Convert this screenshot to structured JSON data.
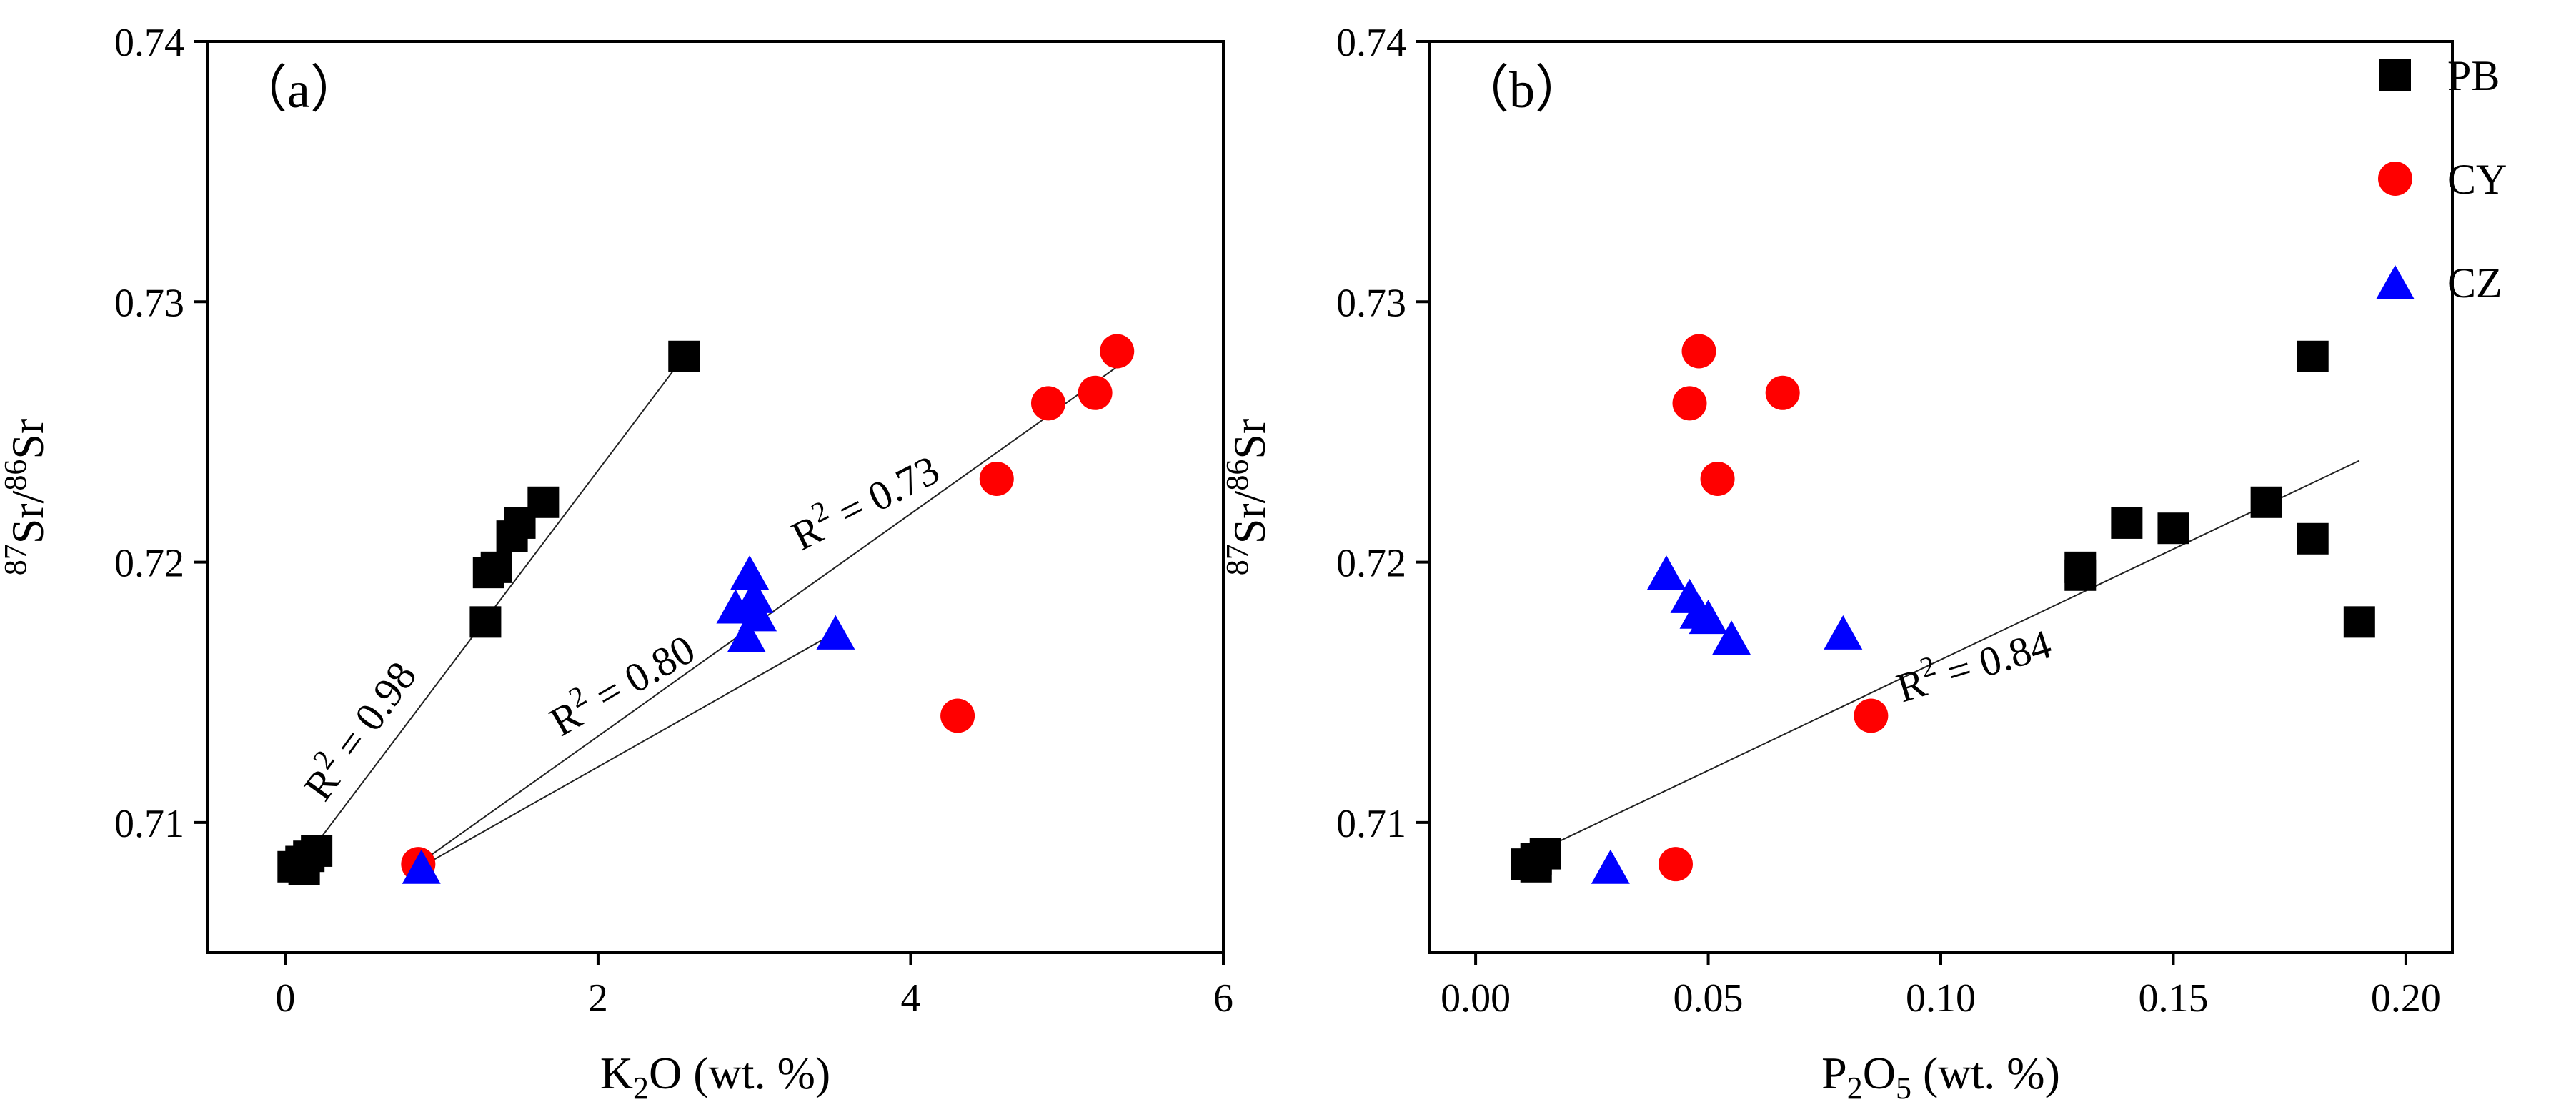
{
  "chart_data": [
    {
      "type": "scatter",
      "panel_label": "（a）",
      "xlabel": {
        "base": "K",
        "sub": "2",
        "rest": "O (wt. %)"
      },
      "ylabel": {
        "sup1": "87",
        "mid": "Sr/",
        "sup2": "86",
        "end": "Sr"
      },
      "xlim": [
        -0.5,
        6
      ],
      "ylim": [
        0.705,
        0.74
      ],
      "xticks": [
        0,
        2,
        4,
        6
      ],
      "xtick_labels": [
        "0",
        "2",
        "4",
        "6"
      ],
      "yticks": [
        0.71,
        0.72,
        0.73,
        0.74
      ],
      "ytick_labels": [
        "0.71",
        "0.72",
        "0.73",
        "0.74"
      ],
      "series": [
        {
          "name": "PB",
          "marker": "square",
          "color": "#000000",
          "points": [
            [
              0.05,
              0.7083
            ],
            [
              0.1,
              0.7085
            ],
            [
              0.15,
              0.7087
            ],
            [
              0.2,
              0.7089
            ],
            [
              0.12,
              0.7082
            ],
            [
              1.28,
              0.7177
            ],
            [
              1.3,
              0.7196
            ],
            [
              1.35,
              0.7198
            ],
            [
              1.45,
              0.721
            ],
            [
              1.5,
              0.7215
            ],
            [
              1.65,
              0.7223
            ],
            [
              2.55,
              0.7279
            ]
          ]
        },
        {
          "name": "CY",
          "marker": "circle",
          "color": "#ff0000",
          "points": [
            [
              0.85,
              0.7084
            ],
            [
              4.3,
              0.7141
            ],
            [
              4.55,
              0.7232
            ],
            [
              4.88,
              0.7261
            ],
            [
              5.18,
              0.7265
            ],
            [
              5.32,
              0.7281
            ]
          ]
        },
        {
          "name": "CZ",
          "marker": "triangle",
          "color": "#0000ff",
          "points": [
            [
              0.87,
              0.7083
            ],
            [
              2.88,
              0.7183
            ],
            [
              2.95,
              0.7172
            ],
            [
              2.97,
              0.7196
            ],
            [
              3.0,
              0.7187
            ],
            [
              3.02,
              0.718
            ],
            [
              3.52,
              0.7173
            ]
          ]
        }
      ],
      "fits": [
        {
          "series": "PB",
          "x": [
            0.15,
            2.55
          ],
          "y": [
            0.7088,
            0.7279
          ],
          "label": "R² = 0.98",
          "label_prefix": "R",
          "label_sup": "2",
          "label_value": " = 0.98",
          "label_x": 0.55,
          "label_y": 0.7132,
          "label_angle": -54
        },
        {
          "series": "CZ",
          "x": [
            0.87,
            3.52
          ],
          "y": [
            0.7083,
            0.7173
          ],
          "label": "R² = 0.80",
          "label_prefix": "R",
          "label_sup": "2",
          "label_value": " = 0.80",
          "label_x": 2.2,
          "label_y": 0.7148,
          "label_angle": -30
        },
        {
          "series": "CY",
          "x": [
            0.85,
            5.32
          ],
          "y": [
            0.7084,
            0.7275
          ],
          "label": "R² = 0.73",
          "label_prefix": "R",
          "label_sup": "2",
          "label_value": " = 0.73",
          "label_x": 3.75,
          "label_y": 0.7218,
          "label_angle": -27
        }
      ]
    },
    {
      "type": "scatter",
      "panel_label": "（b）",
      "xlabel": {
        "base": "P",
        "sub": "2",
        "mid": "O",
        "sub2": "5",
        "rest": " (wt. %)"
      },
      "ylabel": {
        "sup1": "87",
        "mid": "Sr/",
        "sup2": "86",
        "end": "Sr"
      },
      "xlim": [
        -0.01,
        0.21
      ],
      "ylim": [
        0.705,
        0.74
      ],
      "xticks": [
        0,
        0.05,
        0.1,
        0.15,
        0.2
      ],
      "xtick_labels": [
        "0.00",
        "0.05",
        "0.10",
        "0.15",
        "0.20"
      ],
      "yticks": [
        0.71,
        0.72,
        0.73,
        0.74
      ],
      "ytick_labels": [
        "0.71",
        "0.72",
        "0.73",
        "0.74"
      ],
      "series": [
        {
          "name": "PB",
          "marker": "square",
          "color": "#000000",
          "points": [
            [
              0.011,
              0.7084
            ],
            [
              0.013,
              0.7083
            ],
            [
              0.015,
              0.7088
            ],
            [
              0.013,
              0.7086
            ],
            [
              0.13,
              0.7198
            ],
            [
              0.13,
              0.7195
            ],
            [
              0.14,
              0.7215
            ],
            [
              0.15,
              0.7213
            ],
            [
              0.17,
              0.7223
            ],
            [
              0.18,
              0.7279
            ],
            [
              0.18,
              0.7209
            ],
            [
              0.19,
              0.7177
            ]
          ]
        },
        {
          "name": "CY",
          "marker": "circle",
          "color": "#ff0000",
          "points": [
            [
              0.043,
              0.7084
            ],
            [
              0.046,
              0.7261
            ],
            [
              0.048,
              0.7281
            ],
            [
              0.052,
              0.7232
            ],
            [
              0.066,
              0.7265
            ],
            [
              0.085,
              0.7141
            ]
          ]
        },
        {
          "name": "CZ",
          "marker": "triangle",
          "color": "#0000ff",
          "points": [
            [
              0.029,
              0.7083
            ],
            [
              0.041,
              0.7196
            ],
            [
              0.046,
              0.7187
            ],
            [
              0.048,
              0.7181
            ],
            [
              0.05,
              0.7179
            ],
            [
              0.055,
              0.7171
            ],
            [
              0.079,
              0.7173
            ]
          ]
        }
      ],
      "fits": [
        {
          "series": "PB",
          "x": [
            0.01,
            0.19
          ],
          "y": [
            0.7086,
            0.7239
          ],
          "label": "R² = 0.84",
          "label_prefix": "R",
          "label_sup": "2",
          "label_value": " = 0.84",
          "label_x": 0.108,
          "label_y": 0.7155,
          "label_angle": -17
        }
      ]
    }
  ],
  "legend": [
    {
      "name": "PB",
      "marker": "square",
      "color": "#000000"
    },
    {
      "name": "CY",
      "marker": "circle",
      "color": "#ff0000"
    },
    {
      "name": "CZ",
      "marker": "triangle",
      "color": "#0000ff"
    }
  ]
}
